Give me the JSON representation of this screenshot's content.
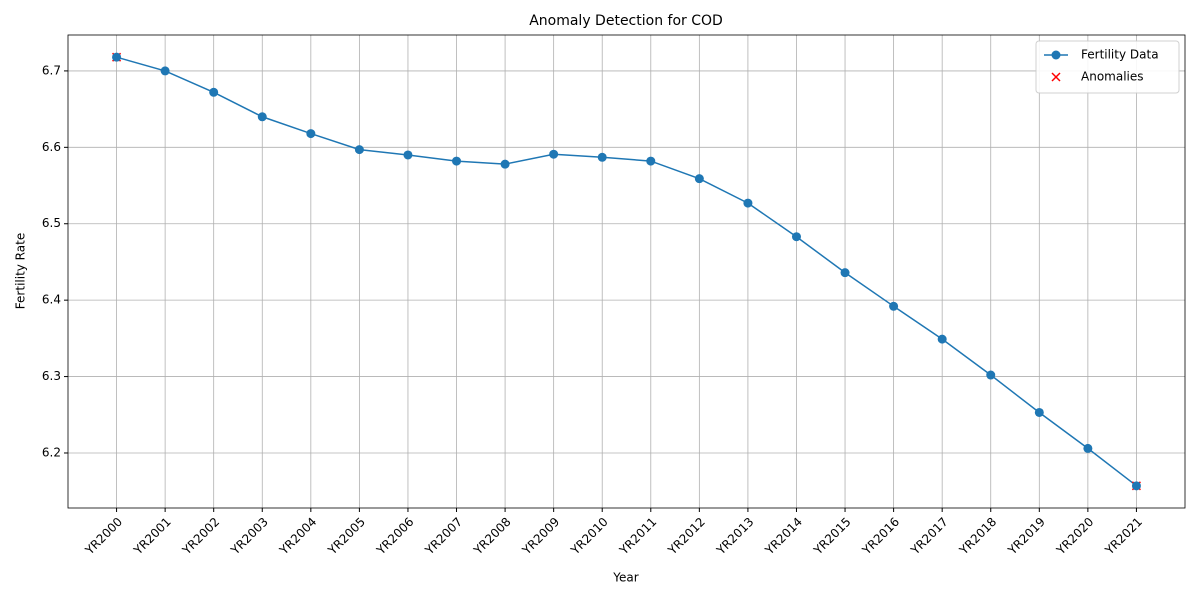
{
  "chart_data": {
    "type": "line",
    "title": "Anomaly Detection for COD",
    "xlabel": "Year",
    "ylabel": "Fertility Rate",
    "categories": [
      "YR2000",
      "YR2001",
      "YR2002",
      "YR2003",
      "YR2004",
      "YR2005",
      "YR2006",
      "YR2007",
      "YR2008",
      "YR2009",
      "YR2010",
      "YR2011",
      "YR2012",
      "YR2013",
      "YR2014",
      "YR2015",
      "YR2016",
      "YR2017",
      "YR2018",
      "YR2019",
      "YR2020",
      "YR2021"
    ],
    "series": [
      {
        "name": "Fertility Data",
        "color": "#1f77b4",
        "marker": "o",
        "values": [
          6.718,
          6.7,
          6.672,
          6.64,
          6.618,
          6.597,
          6.59,
          6.582,
          6.578,
          6.591,
          6.587,
          6.582,
          6.559,
          6.527,
          6.483,
          6.436,
          6.392,
          6.349,
          6.302,
          6.253,
          6.206,
          6.157
        ]
      },
      {
        "name": "Anomalies",
        "color": "#ff0000",
        "marker": "x",
        "values": [
          6.718,
          null,
          null,
          null,
          null,
          null,
          null,
          null,
          null,
          null,
          null,
          null,
          null,
          null,
          null,
          null,
          null,
          null,
          null,
          null,
          null,
          6.157
        ]
      }
    ],
    "ylim": [
      6.128,
      6.747
    ],
    "yticks": [
      6.2,
      6.3,
      6.4,
      6.5,
      6.6,
      6.7
    ],
    "grid": true,
    "legend": "upper right"
  }
}
